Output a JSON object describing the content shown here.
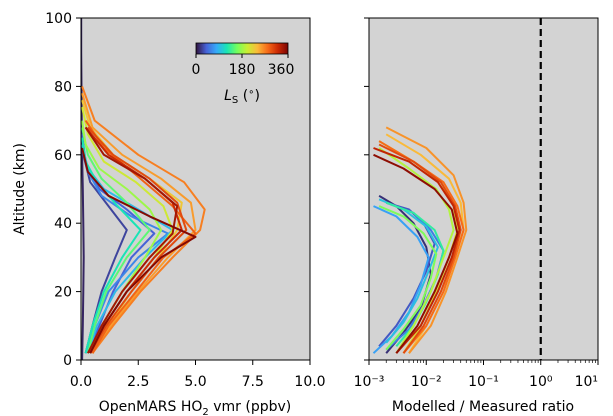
{
  "chart_data": [
    {
      "type": "line",
      "panel": "left",
      "xlabel": "OpenMARS HO₂ vmr (ppbv)",
      "ylabel": "Altitude (km)",
      "xlim": [
        0,
        10
      ],
      "ylim": [
        0,
        100
      ],
      "x_ticks": [
        "0.0",
        "2.5",
        "5.0",
        "7.5",
        "10.0"
      ],
      "y_ticks": [
        "0",
        "20",
        "40",
        "60",
        "80",
        "100"
      ],
      "background": "#d3d3d3",
      "grid": false,
      "series": [
        {
          "ls": 10,
          "x": [
            0.05,
            0.08,
            0.1,
            0.12,
            0.1,
            0.08,
            0.05,
            0.03,
            0.02,
            0.01,
            0.01
          ],
          "y": [
            0,
            10,
            20,
            30,
            40,
            50,
            60,
            70,
            80,
            90,
            100
          ]
        },
        {
          "ls": 25,
          "x": [
            0.2,
            0.5,
            0.9,
            1.5,
            2.0,
            1.2,
            0.4,
            0.1,
            0.02
          ],
          "y": [
            2,
            10,
            20,
            30,
            38,
            45,
            52,
            60,
            70
          ]
        },
        {
          "ls": 40,
          "x": [
            0.3,
            0.8,
            1.4,
            2.2,
            3.2,
            2.0,
            0.8,
            0.2,
            0.05
          ],
          "y": [
            2,
            10,
            20,
            30,
            37,
            44,
            50,
            58,
            66
          ]
        },
        {
          "ls": 60,
          "x": [
            0.2,
            0.6,
            1.2,
            2.5,
            3.8,
            2.2,
            0.9,
            0.3,
            0.05
          ],
          "y": [
            2,
            10,
            20,
            30,
            37,
            42,
            48,
            55,
            62
          ]
        },
        {
          "ls": 90,
          "x": [
            0.3,
            0.7,
            1.5,
            2.8,
            4.0,
            2.5,
            1.0,
            0.3,
            0.05
          ],
          "y": [
            2,
            10,
            20,
            30,
            38,
            44,
            50,
            56,
            63
          ]
        },
        {
          "ls": 120,
          "x": [
            0.2,
            0.5,
            1.0,
            1.8,
            2.6,
            1.6,
            0.7,
            0.2,
            0.05
          ],
          "y": [
            2,
            10,
            20,
            30,
            38,
            45,
            52,
            58,
            65
          ]
        },
        {
          "ls": 150,
          "x": [
            0.3,
            0.6,
            1.1,
            2.0,
            3.0,
            2.0,
            0.9,
            0.3,
            0.05
          ],
          "y": [
            2,
            10,
            20,
            30,
            38,
            46,
            53,
            60,
            68
          ]
        },
        {
          "ls": 180,
          "x": [
            0.4,
            0.9,
            1.8,
            2.8,
            3.5,
            3.0,
            2.0,
            0.8,
            0.2,
            0.05
          ],
          "y": [
            2,
            10,
            20,
            30,
            38,
            44,
            50,
            56,
            63,
            70
          ]
        },
        {
          "ls": 205,
          "x": [
            0.4,
            1.0,
            2.0,
            3.2,
            4.0,
            3.6,
            2.4,
            1.0,
            0.3,
            0.05
          ],
          "y": [
            2,
            10,
            20,
            30,
            38,
            45,
            52,
            58,
            66,
            74
          ]
        },
        {
          "ls": 230,
          "x": [
            0.5,
            1.2,
            2.2,
            3.4,
            4.2,
            4.4,
            3.0,
            1.4,
            0.4,
            0.05
          ],
          "y": [
            2,
            10,
            20,
            30,
            38,
            46,
            53,
            60,
            68,
            76
          ]
        },
        {
          "ls": 255,
          "x": [
            0.5,
            1.3,
            2.5,
            3.8,
            5.0,
            4.8,
            3.5,
            1.8,
            0.5,
            0.05
          ],
          "y": [
            2,
            10,
            20,
            30,
            38,
            46,
            53,
            60,
            68,
            78
          ]
        },
        {
          "ls": 270,
          "x": [
            0.5,
            1.4,
            2.6,
            4.0,
            5.2,
            5.4,
            4.5,
            2.5,
            0.6,
            0.05
          ],
          "y": [
            2,
            10,
            20,
            30,
            38,
            44,
            52,
            60,
            70,
            80
          ]
        },
        {
          "ls": 285,
          "x": [
            0.5,
            1.2,
            2.4,
            3.6,
            5.0,
            4.0,
            2.6,
            1.0,
            0.2
          ],
          "y": [
            2,
            10,
            20,
            30,
            37,
            45,
            53,
            62,
            70
          ]
        },
        {
          "ls": 300,
          "x": [
            0.4,
            1.1,
            2.2,
            3.4,
            4.6,
            4.2,
            3.0,
            1.4,
            0.3
          ],
          "y": [
            2,
            10,
            20,
            30,
            38,
            46,
            53,
            60,
            68
          ]
        },
        {
          "ls": 320,
          "x": [
            0.4,
            1.0,
            2.0,
            3.2,
            4.4,
            4.0,
            2.8,
            1.2,
            0.2
          ],
          "y": [
            2,
            10,
            20,
            30,
            38,
            46,
            53,
            60,
            68
          ]
        },
        {
          "ls": 340,
          "x": [
            0.3,
            0.9,
            1.8,
            3.0,
            4.0,
            4.2,
            2.8,
            1.0,
            0.2
          ],
          "y": [
            2,
            10,
            20,
            30,
            37,
            45,
            53,
            60,
            68
          ]
        },
        {
          "ls": 355,
          "x": [
            0.4,
            1.0,
            2.0,
            3.5,
            5.0,
            3.0,
            1.2,
            0.3,
            0.05
          ],
          "y": [
            2,
            10,
            20,
            30,
            36,
            42,
            48,
            55,
            62
          ]
        }
      ]
    },
    {
      "type": "line",
      "panel": "right",
      "xlabel": "Modelled / Measured ratio",
      "xscale": "log",
      "xlim": [
        0.001,
        10
      ],
      "ylim": [
        0,
        100
      ],
      "x_ticks": [
        "10⁻³",
        "10⁻²",
        "10⁻¹",
        "10⁰",
        "10¹"
      ],
      "reference_line": {
        "x": 1,
        "style": "dashed",
        "color": "#000000"
      },
      "background": "#d3d3d3",
      "grid": false,
      "series": [
        {
          "ls": 15,
          "x": [
            0.002,
            0.004,
            0.008,
            0.012,
            0.01,
            0.006,
            0.003,
            0.0015
          ],
          "y": [
            2,
            8,
            15,
            25,
            33,
            40,
            45,
            48
          ]
        },
        {
          "ls": 35,
          "x": [
            0.0015,
            0.003,
            0.006,
            0.01,
            0.014,
            0.009,
            0.005,
            0.002
          ],
          "y": [
            4,
            10,
            18,
            26,
            34,
            40,
            44,
            46
          ]
        },
        {
          "ls": 55,
          "x": [
            0.002,
            0.005,
            0.009,
            0.015,
            0.02,
            0.012,
            0.006,
            0.002
          ],
          "y": [
            3,
            9,
            16,
            24,
            32,
            38,
            43,
            46
          ]
        },
        {
          "ls": 75,
          "x": [
            0.0012,
            0.0025,
            0.005,
            0.008,
            0.011,
            0.007,
            0.003,
            0.0012
          ],
          "y": [
            2,
            7,
            14,
            22,
            30,
            36,
            42,
            45
          ]
        },
        {
          "ls": 95,
          "x": [
            0.002,
            0.004,
            0.007,
            0.011,
            0.016,
            0.01,
            0.004,
            0.0015
          ],
          "y": [
            5,
            11,
            18,
            26,
            33,
            39,
            44,
            47
          ]
        },
        {
          "ls": 130,
          "x": [
            0.003,
            0.006,
            0.01,
            0.016,
            0.02,
            0.014,
            0.006,
            0.002
          ],
          "y": [
            4,
            10,
            17,
            25,
            32,
            38,
            43,
            46
          ]
        },
        {
          "ls": 165,
          "x": [
            0.002,
            0.004,
            0.008,
            0.012,
            0.015,
            0.009,
            0.004,
            0.0015
          ],
          "y": [
            3,
            9,
            16,
            24,
            31,
            37,
            42,
            45
          ]
        },
        {
          "ls": 190,
          "x": [
            0.003,
            0.006,
            0.012,
            0.02,
            0.03,
            0.025,
            0.015,
            0.005,
            0.0015
          ],
          "y": [
            2,
            10,
            20,
            30,
            38,
            44,
            50,
            56,
            62
          ]
        },
        {
          "ls": 215,
          "x": [
            0.004,
            0.008,
            0.015,
            0.025,
            0.035,
            0.03,
            0.018,
            0.006,
            0.0015
          ],
          "y": [
            2,
            10,
            20,
            30,
            38,
            45,
            52,
            58,
            64
          ]
        },
        {
          "ls": 240,
          "x": [
            0.005,
            0.01,
            0.02,
            0.03,
            0.045,
            0.04,
            0.025,
            0.008,
            0.002
          ],
          "y": [
            2,
            10,
            20,
            30,
            38,
            46,
            53,
            60,
            66
          ]
        },
        {
          "ls": 260,
          "x": [
            0.005,
            0.012,
            0.022,
            0.035,
            0.05,
            0.045,
            0.03,
            0.01,
            0.002
          ],
          "y": [
            2,
            10,
            20,
            30,
            38,
            46,
            54,
            62,
            68
          ]
        },
        {
          "ls": 280,
          "x": [
            0.004,
            0.01,
            0.02,
            0.032,
            0.045,
            0.035,
            0.02,
            0.006,
            0.0015
          ],
          "y": [
            2,
            10,
            20,
            30,
            38,
            45,
            52,
            58,
            64
          ]
        },
        {
          "ls": 300,
          "x": [
            0.004,
            0.009,
            0.018,
            0.03,
            0.04,
            0.032,
            0.018,
            0.006,
            0.0015
          ],
          "y": [
            2,
            10,
            20,
            30,
            38,
            45,
            52,
            58,
            63
          ]
        },
        {
          "ls": 325,
          "x": [
            0.003,
            0.008,
            0.016,
            0.028,
            0.038,
            0.03,
            0.016,
            0.005,
            0.0012
          ],
          "y": [
            2,
            10,
            20,
            30,
            38,
            45,
            52,
            58,
            62
          ]
        },
        {
          "ls": 350,
          "x": [
            0.003,
            0.007,
            0.014,
            0.025,
            0.035,
            0.028,
            0.014,
            0.004,
            0.0012
          ],
          "y": [
            2,
            10,
            20,
            30,
            37,
            44,
            50,
            56,
            60
          ]
        }
      ]
    }
  ],
  "colorbar": {
    "label": "Ls (°)",
    "ticks": [
      "0",
      "180",
      "360"
    ],
    "range": [
      0,
      360
    ],
    "colormap": [
      "#30123b",
      "#4662d7",
      "#36aaf9",
      "#1ae4b6",
      "#72fe5e",
      "#c8ef34",
      "#faba39",
      "#f66b19",
      "#cb2a04",
      "#7a0403"
    ]
  }
}
